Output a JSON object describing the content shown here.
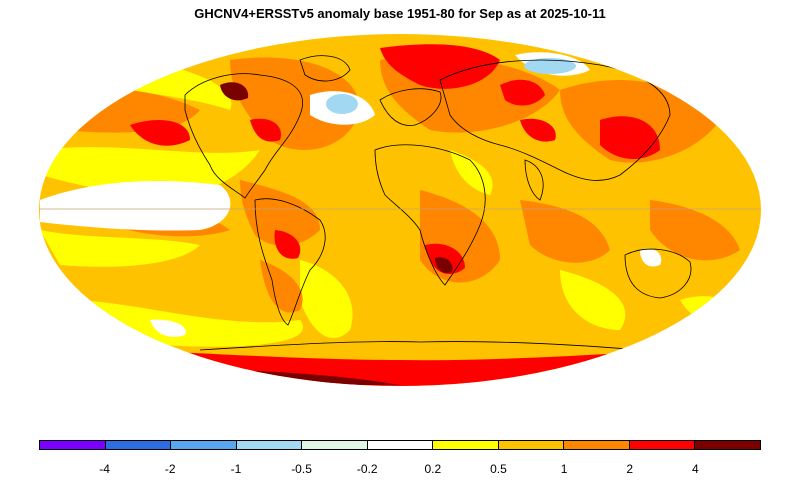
{
  "title": "GHCNV4+ERSSTv5 anomaly base 1951-80 for Sep as at 2025-10-11",
  "legend": {
    "colors": [
      "#7b00ff",
      "#2e6de0",
      "#5aa6ee",
      "#a3d8f3",
      "#dff5e6",
      "#ffffff",
      "#ffff00",
      "#ffc200",
      "#ff8700",
      "#ff0000",
      "#7a0000"
    ],
    "labels": [
      "-4",
      "-2",
      "-1",
      "-0.5",
      "-0.2",
      "0.2",
      "0.5",
      "1",
      "2",
      "4"
    ]
  },
  "palette": {
    "base": "#ffc200",
    "warm": "#ff8700",
    "hot": "#ff0000",
    "extreme": "#7a0000",
    "mild": "#ffff00",
    "neutral": "#ffffff",
    "cool": "#a3d8f3",
    "coastline": "#000000"
  }
}
